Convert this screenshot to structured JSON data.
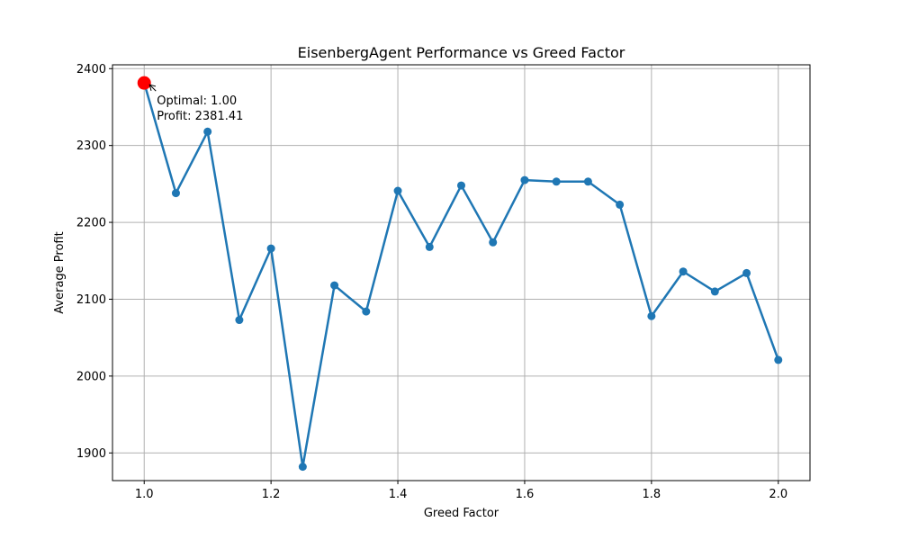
{
  "chart_data": {
    "type": "line",
    "title": "EisenbergAgent Performance vs Greed Factor",
    "xlabel": "Greed Factor",
    "ylabel": "Average Profit",
    "xlim": [
      0.95,
      2.05
    ],
    "ylim": [
      1864,
      2405
    ],
    "xticks": [
      1.0,
      1.2,
      1.4,
      1.6,
      1.8,
      2.0
    ],
    "xtick_labels": [
      "1.0",
      "1.2",
      "1.4",
      "1.6",
      "1.8",
      "2.0"
    ],
    "yticks": [
      1900,
      2000,
      2100,
      2200,
      2300,
      2400
    ],
    "ytick_labels": [
      "1900",
      "2000",
      "2100",
      "2200",
      "2300",
      "2400"
    ],
    "grid": true,
    "series": [
      {
        "color": "#1f77b4",
        "x": [
          1.0,
          1.05,
          1.1,
          1.15,
          1.2,
          1.25,
          1.3,
          1.35,
          1.4,
          1.45,
          1.5,
          1.55,
          1.6,
          1.65,
          1.7,
          1.75,
          1.8,
          1.85,
          1.9,
          1.95,
          2.0
        ],
        "y": [
          2381.41,
          2238,
          2318,
          2073,
          2166,
          1882,
          2118,
          2084,
          2241,
          2168,
          2248,
          2174,
          2255,
          2253,
          2253,
          2223,
          2078,
          2136,
          2110,
          2134,
          2021
        ]
      }
    ],
    "highlight": {
      "x": 1.0,
      "y": 2381.41,
      "color": "#ff0000",
      "line1": "Optimal: 1.00",
      "line2": "Profit: 2381.41"
    }
  }
}
